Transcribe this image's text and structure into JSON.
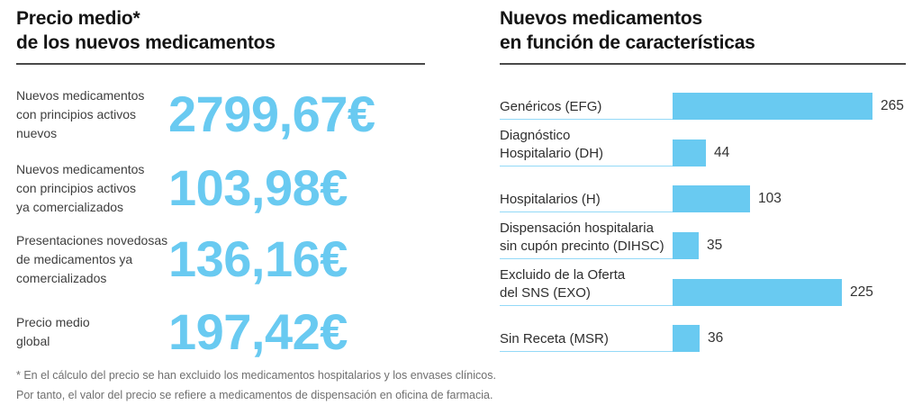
{
  "accent_color": "#69caf1",
  "rule_color": "#4a4a4a",
  "left_panel": {
    "title": "Precio medio*\nde los nuevos medicamentos",
    "rows": [
      {
        "label": "Nuevos medicamentos\ncon principios activos\nnuevos",
        "value": "2799,67€"
      },
      {
        "label": "Nuevos medicamentos\ncon principios activos\nya comercializados",
        "value": "103,98€"
      },
      {
        "label": "Presentaciones novedosas\nde medicamentos ya\ncomercializados",
        "value": "136,16€"
      },
      {
        "label": "Precio medio\nglobal",
        "value": "197,42€"
      }
    ],
    "footnote": "* En el cálculo del precio se han excluido los medicamentos hospitalarios y los envases clínicos.\nPor tanto, el valor del precio se refiere a medicamentos de dispensación en oficina de farmacia."
  },
  "right_panel": {
    "title": "Nuevos medicamentos\nen función de características"
  },
  "chart_data": {
    "type": "bar",
    "orientation": "horizontal",
    "title": "Nuevos medicamentos en función de características",
    "categories": [
      "Genéricos (EFG)",
      "Diagnóstico\nHospitalario (DH)",
      "Hospitalarios (H)",
      "Dispensación hospitalaria\nsin cupón precinto (DIHSC)",
      "Excluido de la Oferta\ndel SNS (EXO)",
      "Sin Receta (MSR)"
    ],
    "values": [
      265,
      44,
      103,
      35,
      225,
      36
    ],
    "xlim": [
      0,
      265
    ],
    "bar_color": "#69caf1",
    "value_labels": true,
    "grid": false,
    "legend": false
  }
}
